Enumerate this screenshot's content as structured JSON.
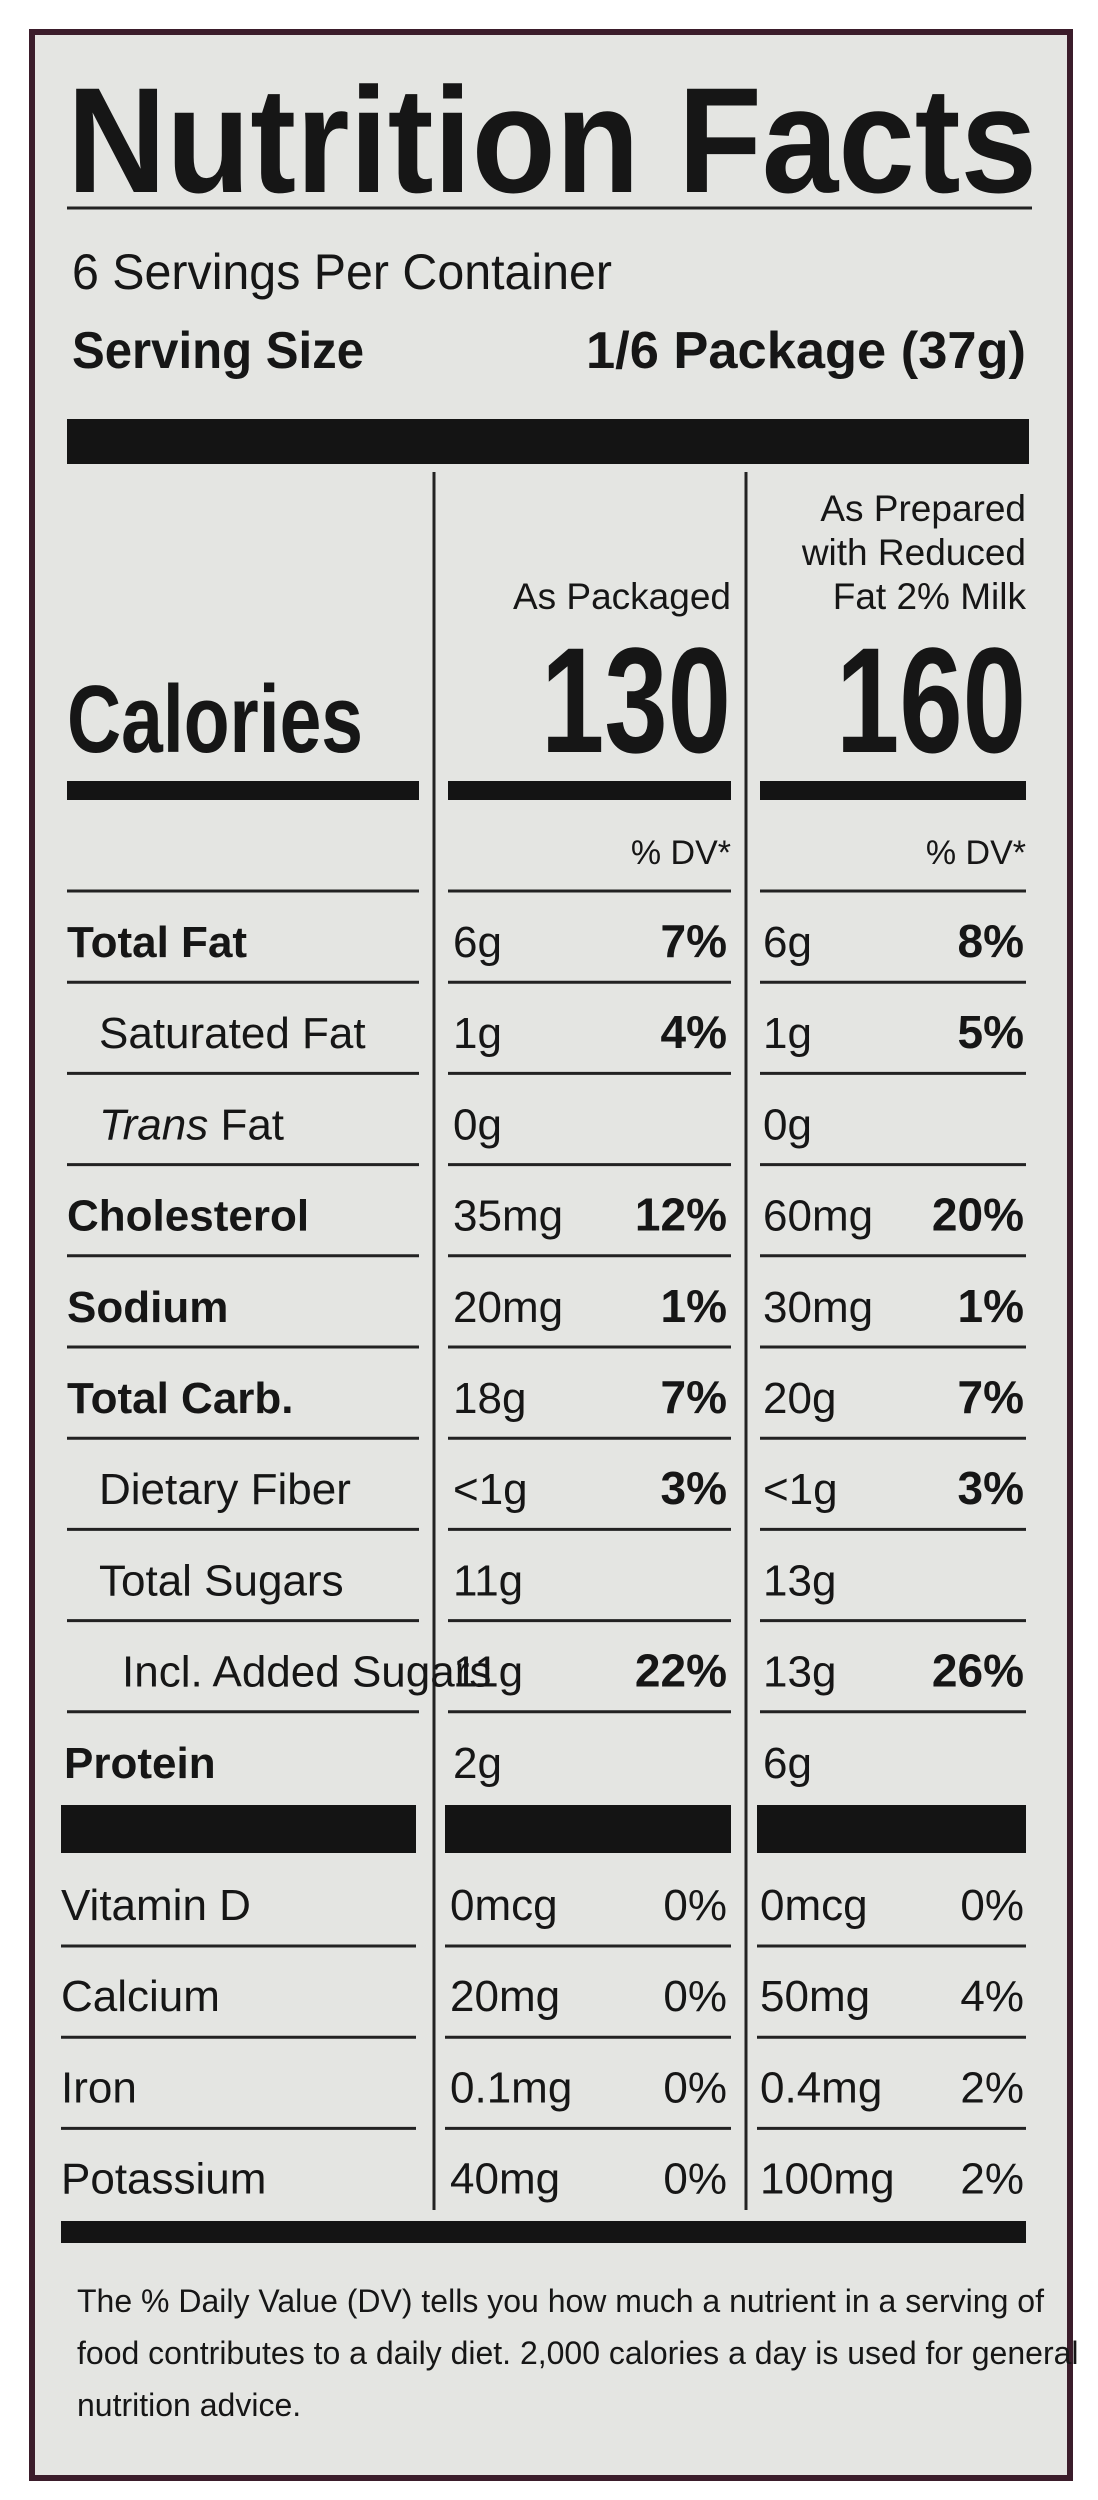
{
  "header": {
    "title": "Nutrition Facts",
    "servings": "6 Servings Per Container",
    "serving_size_label": "Serving Size",
    "serving_size_value": "1/6 Package (37g)"
  },
  "columns": [
    {
      "heading": [
        "As Packaged"
      ],
      "calories": "130"
    },
    {
      "heading": [
        "As Prepared",
        "with Reduced",
        "Fat 2% Milk"
      ],
      "calories": "160"
    }
  ],
  "calories_label": "Calories",
  "dv_header": "% DV*",
  "nutrients": [
    {
      "name": "Total Fat",
      "bold": true,
      "level": 0,
      "values": [
        [
          "6g",
          "7%"
        ],
        [
          "6g",
          "8%"
        ]
      ]
    },
    {
      "name": "Saturated Fat",
      "bold": false,
      "level": 1,
      "values": [
        [
          "1g",
          "4%"
        ],
        [
          "1g",
          "5%"
        ]
      ]
    },
    {
      "name_italic": "Trans",
      "name": "Fat",
      "bold": false,
      "level": 1,
      "values": [
        [
          "0g"
        ],
        [
          "0g"
        ]
      ]
    },
    {
      "name": "Cholesterol",
      "bold": true,
      "level": 0,
      "values": [
        [
          "35mg",
          "12%"
        ],
        [
          "60mg",
          "20%"
        ]
      ]
    },
    {
      "name": "Sodium",
      "bold": true,
      "level": 0,
      "values": [
        [
          "20mg",
          "1%"
        ],
        [
          "30mg",
          "1%"
        ]
      ]
    },
    {
      "name": "Total Carb.",
      "bold": true,
      "level": 0,
      "values": [
        [
          "18g",
          "7%"
        ],
        [
          "20g",
          "7%"
        ]
      ]
    },
    {
      "name": "Dietary Fiber",
      "bold": false,
      "level": 1,
      "values": [
        [
          "<1g",
          "3%"
        ],
        [
          "<1g",
          "3%"
        ]
      ]
    },
    {
      "name": "Total Sugars",
      "bold": false,
      "level": 1,
      "values": [
        [
          "11g"
        ],
        [
          "13g"
        ]
      ]
    },
    {
      "name": "Incl. Added Sugars",
      "bold": false,
      "level": 2,
      "values": [
        [
          "11g",
          "22%"
        ],
        [
          "13g",
          "26%"
        ]
      ]
    },
    {
      "name": "Protein",
      "bold": true,
      "level": 0,
      "values": [
        [
          "2g"
        ],
        [
          "6g"
        ]
      ]
    }
  ],
  "vitamins": [
    {
      "name": "Vitamin D",
      "values": [
        [
          "0mcg",
          "0%"
        ],
        [
          "0mcg",
          "0%"
        ]
      ]
    },
    {
      "name": "Calcium",
      "values": [
        [
          "20mg",
          "0%"
        ],
        [
          "50mg",
          "4%"
        ]
      ]
    },
    {
      "name": "Iron",
      "values": [
        [
          "0.1mg",
          "0%"
        ],
        [
          "0.4mg",
          "2%"
        ]
      ]
    },
    {
      "name": "Potassium",
      "values": [
        [
          "40mg",
          "0%"
        ],
        [
          "100mg",
          "2%"
        ]
      ]
    }
  ],
  "footnote": [
    "The % Daily Value (DV) tells you how much a nutrient in a serving of",
    "food contributes to a daily diet. 2,000 calories a day is used for general",
    "nutrition advice."
  ]
}
